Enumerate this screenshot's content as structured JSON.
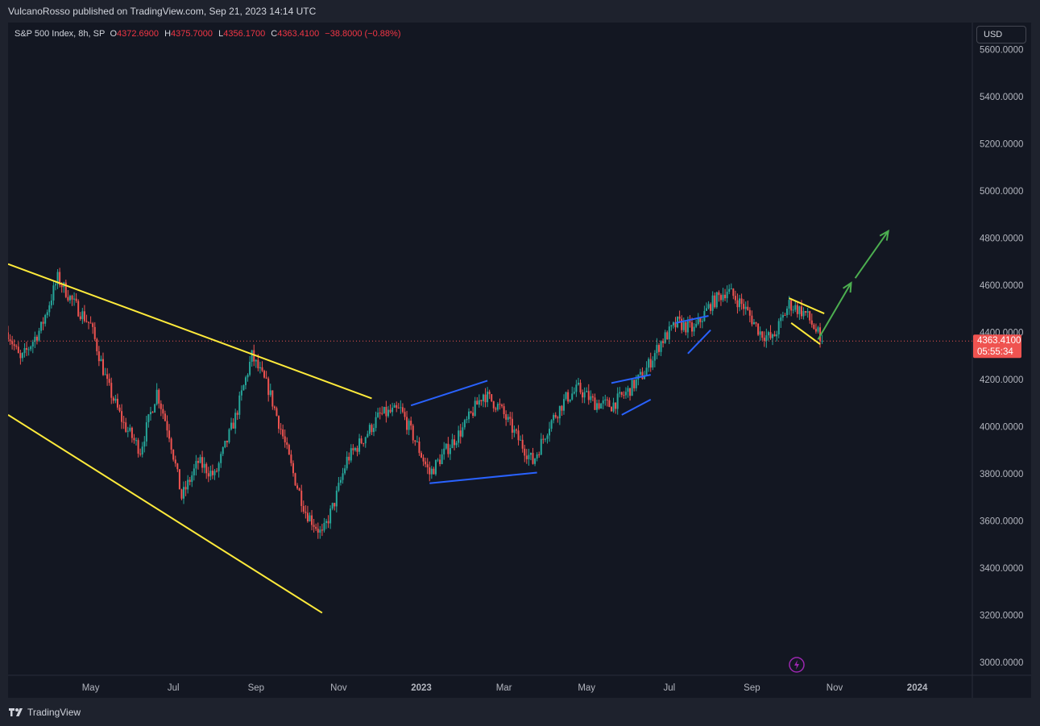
{
  "header": {
    "publisher": "VulcanoRosso published on TradingView.com, Sep 21, 2023 14:14 UTC"
  },
  "legend": {
    "symbol": "S&P 500 Index, 8h, SP",
    "o_label": "O",
    "o_value": "4372.6900",
    "h_label": "H",
    "h_value": "4375.7000",
    "l_label": "L",
    "l_value": "4356.1700",
    "c_label": "C",
    "c_value": "4363.4100",
    "change": "−38.8000 (−0.88%)"
  },
  "currency_button": "USD",
  "price_tag": {
    "price": "4363.4100",
    "countdown": "05:55:34"
  },
  "footer": {
    "brand": "TradingView"
  },
  "colors": {
    "up": "#26a69a",
    "down": "#ef5350",
    "trendline": "#ffeb3b",
    "pattern": "#2962ff",
    "arrow": "#4caf50",
    "bg": "#131722"
  },
  "chart_data": {
    "type": "candlestick",
    "title": "S&P 500 Index, 8h, SP",
    "x_ticks": [
      "May",
      "Jul",
      "Sep",
      "Nov",
      "2023",
      "Mar",
      "May",
      "Jul",
      "Sep",
      "Nov",
      "2024"
    ],
    "y_ticks": [
      "5600.0000",
      "5400.0000",
      "5200.0000",
      "5000.0000",
      "4800.0000",
      "4600.0000",
      "4400.0000",
      "4200.0000",
      "4000.0000",
      "3800.0000",
      "3600.0000",
      "3400.0000",
      "3200.0000",
      "3000.0000"
    ],
    "ylim": [
      2940,
      5610
    ],
    "xlim": [
      0,
      23.36
    ],
    "last_price": 4363.41,
    "price_path": [
      [
        0,
        4400
      ],
      [
        0.3,
        4280
      ],
      [
        0.8,
        4420
      ],
      [
        1.2,
        4630
      ],
      [
        1.6,
        4520
      ],
      [
        2.0,
        4430
      ],
      [
        2.4,
        4180
      ],
      [
        2.8,
        4010
      ],
      [
        3.2,
        3900
      ],
      [
        3.6,
        4150
      ],
      [
        3.9,
        3970
      ],
      [
        4.2,
        3700
      ],
      [
        4.6,
        3850
      ],
      [
        5.0,
        3790
      ],
      [
        5.5,
        4040
      ],
      [
        5.9,
        4300
      ],
      [
        6.3,
        4160
      ],
      [
        6.6,
        3990
      ],
      [
        6.9,
        3800
      ],
      [
        7.2,
        3640
      ],
      [
        7.6,
        3540
      ],
      [
        7.9,
        3680
      ],
      [
        8.2,
        3860
      ],
      [
        8.6,
        3950
      ],
      [
        9.0,
        4050
      ],
      [
        9.5,
        4070
      ],
      [
        9.8,
        3960
      ],
      [
        10.2,
        3800
      ],
      [
        10.6,
        3900
      ],
      [
        11.0,
        3990
      ],
      [
        11.5,
        4140
      ],
      [
        11.9,
        4080
      ],
      [
        12.3,
        3960
      ],
      [
        12.7,
        3850
      ],
      [
        13.1,
        4010
      ],
      [
        13.5,
        4120
      ],
      [
        13.8,
        4160
      ],
      [
        14.2,
        4100
      ],
      [
        14.6,
        4090
      ],
      [
        15.0,
        4150
      ],
      [
        15.4,
        4230
      ],
      [
        15.8,
        4360
      ],
      [
        16.2,
        4440
      ],
      [
        16.6,
        4410
      ],
      [
        17.0,
        4520
      ],
      [
        17.4,
        4580
      ],
      [
        17.8,
        4510
      ],
      [
        18.2,
        4400
      ],
      [
        18.5,
        4370
      ],
      [
        18.9,
        4520
      ],
      [
        19.3,
        4480
      ],
      [
        19.7,
        4363.41
      ]
    ],
    "drawings": {
      "yellow_upper_trendline": [
        [
          0,
          4690
        ],
        [
          8.8,
          4120
        ]
      ],
      "yellow_lower_trendline": [
        [
          0,
          4050
        ],
        [
          7.6,
          3210
        ]
      ],
      "blue_pattern_1": [
        [
          9.75,
          4090
        ],
        [
          11.6,
          4195
        ],
        [
          10.2,
          3760
        ],
        [
          12.8,
          3805
        ]
      ],
      "blue_pattern_2": [
        [
          14.6,
          4185
        ],
        [
          15.55,
          4220
        ],
        [
          14.85,
          4050
        ],
        [
          15.55,
          4115
        ]
      ],
      "blue_pattern_3": [
        [
          16.15,
          4440
        ],
        [
          16.95,
          4470
        ],
        [
          16.45,
          4310
        ],
        [
          17.0,
          4410
        ]
      ],
      "yellow_small_wedge": [
        [
          18.9,
          4545
        ],
        [
          19.75,
          4480
        ],
        [
          18.95,
          4440
        ],
        [
          19.65,
          4350
        ]
      ],
      "green_arrow_1": [
        [
          19.6,
          4370
        ],
        [
          20.4,
          4610
        ]
      ],
      "green_arrow_2": [
        [
          20.5,
          4630
        ],
        [
          21.3,
          4830
        ]
      ]
    }
  }
}
